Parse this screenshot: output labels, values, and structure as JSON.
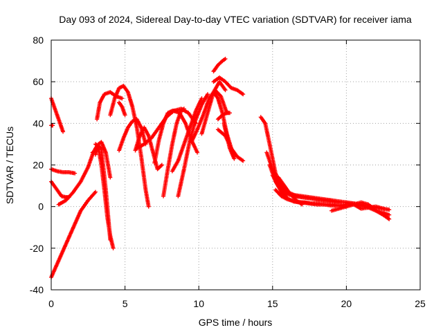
{
  "chart_data": {
    "type": "scatter",
    "title": "Day 093 of 2024, Sidereal Day-to-day VTEC variation (SDTVAR) for receiver iama",
    "xlabel": "GPS time / hours",
    "ylabel": "SDTVAR / TECUs",
    "xlim": [
      0,
      25
    ],
    "ylim": [
      -40,
      80
    ],
    "xticks": [
      0,
      5,
      10,
      15,
      20,
      25
    ],
    "yticks": [
      -40,
      -20,
      0,
      20,
      40,
      60,
      80
    ],
    "grid": true,
    "marker": "+",
    "color": "#ff0000",
    "series": [
      {
        "name": "arc-01",
        "x": [
          0.0,
          0.3,
          0.6,
          0.8
        ],
        "y": [
          52,
          46,
          40,
          36
        ]
      },
      {
        "name": "arc-02",
        "x": [
          0.0,
          0.1
        ],
        "y": [
          39,
          39
        ]
      },
      {
        "name": "arc-03",
        "x": [
          0.0,
          0.4,
          0.8,
          1.2,
          1.6
        ],
        "y": [
          18,
          17,
          16.5,
          16.5,
          16
        ]
      },
      {
        "name": "arc-04",
        "x": [
          0.0,
          0.4,
          0.7,
          1.0,
          1.2
        ],
        "y": [
          12,
          8,
          5,
          4.5,
          4.5
        ]
      },
      {
        "name": "arc-05",
        "x": [
          0.0,
          0.5,
          1.0,
          1.5,
          2.0,
          2.5,
          3.0
        ],
        "y": [
          -34,
          -26,
          -18,
          -10,
          -2,
          3,
          7
        ]
      },
      {
        "name": "arc-06",
        "x": [
          0.5,
          1.0,
          1.5,
          2.0,
          2.5,
          2.8,
          3.0,
          3.2
        ],
        "y": [
          1,
          3,
          7,
          12,
          19,
          25,
          28,
          30
        ]
      },
      {
        "name": "arc-07",
        "x": [
          2.8,
          3.2,
          3.4,
          3.6,
          3.8,
          4.0,
          4.2
        ],
        "y": [
          26,
          28,
          20,
          8,
          -5,
          -14,
          -20
        ]
      },
      {
        "name": "arc-08",
        "x": [
          3.0,
          3.4,
          3.7,
          4.0
        ],
        "y": [
          30,
          28,
          8,
          -16
        ]
      },
      {
        "name": "arc-09",
        "x": [
          3.0,
          3.2,
          3.4,
          3.7,
          4.0
        ],
        "y": [
          25,
          30,
          31,
          26,
          14
        ]
      },
      {
        "name": "arc-10",
        "x": [
          3.1,
          3.3,
          3.6,
          4.0,
          4.4,
          4.8
        ],
        "y": [
          42,
          50,
          54,
          55,
          53,
          52
        ]
      },
      {
        "name": "arc-11",
        "x": [
          4.0,
          4.3,
          4.6,
          4.9,
          5.2,
          5.5,
          5.8,
          6.1,
          6.4,
          6.6
        ],
        "y": [
          44,
          52,
          57,
          58,
          55,
          48,
          38,
          24,
          8,
          0
        ]
      },
      {
        "name": "arc-12",
        "x": [
          4.6,
          4.8,
          5.0
        ],
        "y": [
          50,
          48,
          44
        ]
      },
      {
        "name": "arc-13",
        "x": [
          4.6,
          4.9,
          5.2,
          5.5,
          5.8,
          6.1,
          6.4
        ],
        "y": [
          27,
          33,
          38,
          41,
          42,
          38,
          30
        ]
      },
      {
        "name": "arc-14",
        "x": [
          5.7,
          6.0,
          6.3,
          6.6,
          6.9,
          7.2,
          7.5
        ],
        "y": [
          27,
          34,
          38,
          34,
          26,
          18,
          20
        ]
      },
      {
        "name": "arc-15",
        "x": [
          5.8,
          6.3,
          6.8,
          7.3,
          7.8,
          8.3,
          8.8,
          9.3,
          9.8
        ],
        "y": [
          28,
          30,
          33,
          38,
          43,
          46,
          47,
          45,
          40
        ]
      },
      {
        "name": "arc-16",
        "x": [
          7.0,
          7.3,
          7.6,
          7.9,
          8.2,
          8.4
        ],
        "y": [
          21,
          32,
          40,
          45,
          46,
          46
        ]
      },
      {
        "name": "arc-17",
        "x": [
          7.6,
          7.9,
          8.2,
          8.5,
          8.8,
          9.0
        ],
        "y": [
          5,
          18,
          30,
          40,
          46,
          47
        ]
      },
      {
        "name": "arc-18",
        "x": [
          8.3,
          8.7,
          9.1,
          9.5,
          9.9
        ],
        "y": [
          46,
          45,
          40,
          32,
          26
        ]
      },
      {
        "name": "arc-19",
        "x": [
          8.2,
          8.6,
          9.0,
          9.4,
          9.8,
          10.2
        ],
        "y": [
          17,
          22,
          30,
          38,
          46,
          52
        ]
      },
      {
        "name": "arc-20",
        "x": [
          8.6,
          9.0,
          9.4,
          9.8,
          10.2,
          10.6
        ],
        "y": [
          5,
          18,
          32,
          42,
          49,
          54
        ]
      },
      {
        "name": "arc-21",
        "x": [
          9.5,
          9.9,
          10.3,
          10.7,
          11.1,
          11.5,
          11.9
        ],
        "y": [
          31,
          37,
          44,
          52,
          56,
          53,
          45
        ]
      },
      {
        "name": "arc-22",
        "x": [
          10.2,
          10.6,
          11.0,
          11.4,
          11.8
        ],
        "y": [
          35,
          45,
          55,
          60,
          56
        ]
      },
      {
        "name": "arc-23",
        "x": [
          11.0,
          11.3,
          11.6,
          11.9,
          12.2
        ],
        "y": [
          55,
          52,
          45,
          35,
          28
        ]
      },
      {
        "name": "arc-24",
        "x": [
          11.0,
          11.3,
          11.6,
          11.8
        ],
        "y": [
          65,
          68,
          70,
          71
        ]
      },
      {
        "name": "arc-25",
        "x": [
          11.0,
          11.4,
          11.8,
          12.2,
          12.6,
          13.0
        ],
        "y": [
          60,
          62,
          60,
          57,
          56,
          54
        ]
      },
      {
        "name": "arc-26",
        "x": [
          11.3,
          11.6,
          11.9,
          12.1
        ],
        "y": [
          42,
          44,
          45,
          45
        ]
      },
      {
        "name": "arc-27",
        "x": [
          11.3,
          11.8,
          12.2,
          12.6,
          13.0
        ],
        "y": [
          37,
          34,
          28,
          24,
          22
        ]
      },
      {
        "name": "arc-28",
        "x": [
          11.7,
          11.9,
          12.1,
          12.4
        ],
        "y": [
          40,
          34,
          28,
          23
        ]
      },
      {
        "name": "arc-29",
        "x": [
          14.2,
          14.5,
          14.8,
          15.2,
          15.6,
          16.0,
          16.5,
          17.0,
          17.5,
          18.0,
          18.5,
          19.0
        ],
        "y": [
          43,
          40,
          30,
          16,
          10,
          7,
          5.5,
          5,
          4.5,
          4,
          3.5,
          3
        ]
      },
      {
        "name": "arc-30",
        "x": [
          14.6,
          15.0,
          15.4,
          15.8,
          16.2,
          16.6,
          17.0,
          17.5,
          18.0,
          18.5,
          19.0,
          19.5
        ],
        "y": [
          26,
          18,
          12,
          8,
          6,
          5,
          4.5,
          4,
          3.5,
          3,
          2.5,
          2
        ]
      },
      {
        "name": "arc-31",
        "x": [
          14.8,
          15.2,
          15.6,
          16.0,
          16.4,
          16.8,
          17.2,
          17.6,
          18.0,
          18.5,
          19.0,
          19.5,
          20.0
        ],
        "y": [
          20,
          12,
          7,
          4,
          2.5,
          2,
          2,
          1.5,
          1.5,
          1,
          1,
          0.5,
          0
        ]
      },
      {
        "name": "arc-32",
        "x": [
          15.0,
          15.5,
          16.0,
          16.5,
          17.0,
          17.5,
          18.0,
          18.5,
          19.0,
          19.5,
          20.0,
          20.5,
          21.0,
          21.5,
          22.0,
          22.5,
          22.9
        ],
        "y": [
          15,
          9,
          6,
          5,
          4.5,
          4,
          3.5,
          3,
          3,
          2.5,
          2,
          1.5,
          1,
          0,
          -0.5,
          -1,
          -1.5
        ]
      },
      {
        "name": "arc-33",
        "x": [
          15.2,
          15.6,
          16.0,
          16.5,
          17.0,
          17.5,
          18.0,
          18.5,
          19.0,
          19.5,
          20.0,
          20.5,
          21.0,
          21.5,
          22.0,
          22.5,
          22.9
        ],
        "y": [
          8,
          5,
          3.5,
          2.5,
          2,
          1.5,
          1,
          1,
          0.5,
          0.5,
          1,
          1.5,
          0.5,
          -0.5,
          -2,
          -3,
          -4
        ]
      },
      {
        "name": "arc-34",
        "x": [
          15.4,
          15.8,
          16.2,
          16.6,
          17.0
        ],
        "y": [
          14,
          10,
          6,
          3,
          1
        ]
      },
      {
        "name": "arc-35",
        "x": [
          19.0,
          19.5,
          20.0,
          20.5,
          21.0,
          21.5,
          22.0,
          22.5,
          22.9
        ],
        "y": [
          -2,
          -1,
          0,
          1,
          2,
          1,
          -2,
          -4,
          -6
        ]
      },
      {
        "name": "arc-36",
        "x": [
          20.0,
          20.5,
          21.0,
          21.5,
          22.0,
          22.5
        ],
        "y": [
          2,
          1,
          -1,
          -0.5,
          0,
          -1
        ]
      }
    ]
  }
}
